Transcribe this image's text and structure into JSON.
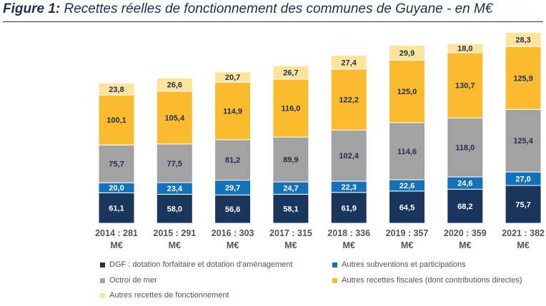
{
  "title": {
    "prefix": "Figure 1:",
    "text": " Recettes réelles de fonctionnement des communes de Guyane - en M€"
  },
  "colors": {
    "dgf": "#1b365d",
    "subventions": "#1472b8",
    "octroi": "#a2a2a2",
    "fiscales": "#fbbb2f",
    "autres": "#fde49c",
    "label_dark": "#1f2f4f",
    "label_light": "#ffffff"
  },
  "chart_data": {
    "type": "bar",
    "stacked": true,
    "categories": [
      "2014 : 281 M€",
      "2015 : 291 M€",
      "2016 : 303 M€",
      "2017 : 315 M€",
      "2018 : 336 M€",
      "2019 : 357 M€",
      "2020 : 359 M€",
      "2021 : 382 M€"
    ],
    "category_lines": [
      [
        "2014 : 281",
        "M€"
      ],
      [
        "2015 : 291",
        "M€"
      ],
      [
        "2016 : 303",
        "M€"
      ],
      [
        "2017 : 315",
        "M€"
      ],
      [
        "2018 : 336",
        "M€"
      ],
      [
        "2019 : 357",
        "M€"
      ],
      [
        "2020 : 359",
        "M€"
      ],
      [
        "2021 : 382",
        "M€"
      ]
    ],
    "series": [
      {
        "key": "dgf",
        "name": "DGF : dotation forfaitaire et dotation d'aménagement",
        "values": [
          61.1,
          58.0,
          56.6,
          58.1,
          61.9,
          64.5,
          68.2,
          75.7
        ],
        "labels": [
          "61,1",
          "58,0",
          "56,6",
          "58,1",
          "61,9",
          "64,5",
          "68,2",
          "75,7"
        ]
      },
      {
        "key": "subventions",
        "name": "Autres subventions et participations",
        "values": [
          20.0,
          23.4,
          29.7,
          24.7,
          22.3,
          22.6,
          24.6,
          27.0
        ],
        "labels": [
          "20,0",
          "23,4",
          "29,7",
          "24,7",
          "22,3",
          "22,6",
          "24,6",
          "27,0"
        ]
      },
      {
        "key": "octroi",
        "name": "Octroi de mer",
        "values": [
          75.7,
          77.5,
          81.2,
          89.9,
          102.4,
          114.6,
          118.0,
          125.4
        ],
        "labels": [
          "75,7",
          "77,5",
          "81,2",
          "89,9",
          "102,4",
          "114,6",
          "118,0",
          "125,4"
        ]
      },
      {
        "key": "fiscales",
        "name": "Autres recettes fiscales (dont contributions directes)",
        "values": [
          100.1,
          105.4,
          114.9,
          116.0,
          122.2,
          125.0,
          130.7,
          125.9
        ],
        "labels": [
          "100,1",
          "105,4",
          "114,9",
          "116,0",
          "122,2",
          "125,0",
          "130,7",
          "125,9"
        ]
      },
      {
        "key": "autres",
        "name": "Autres recettes de fonctionnement",
        "values": [
          23.8,
          26.6,
          20.7,
          26.7,
          27.4,
          29.9,
          18.0,
          28.3
        ],
        "labels": [
          "23,8",
          "26,6",
          "20,7",
          "26,7",
          "27,4",
          "29,9",
          "18,0",
          "28,3"
        ]
      }
    ],
    "xlabel": "",
    "ylabel": "",
    "y_axis_visible": false,
    "grid": false,
    "legend_position": "bottom"
  }
}
